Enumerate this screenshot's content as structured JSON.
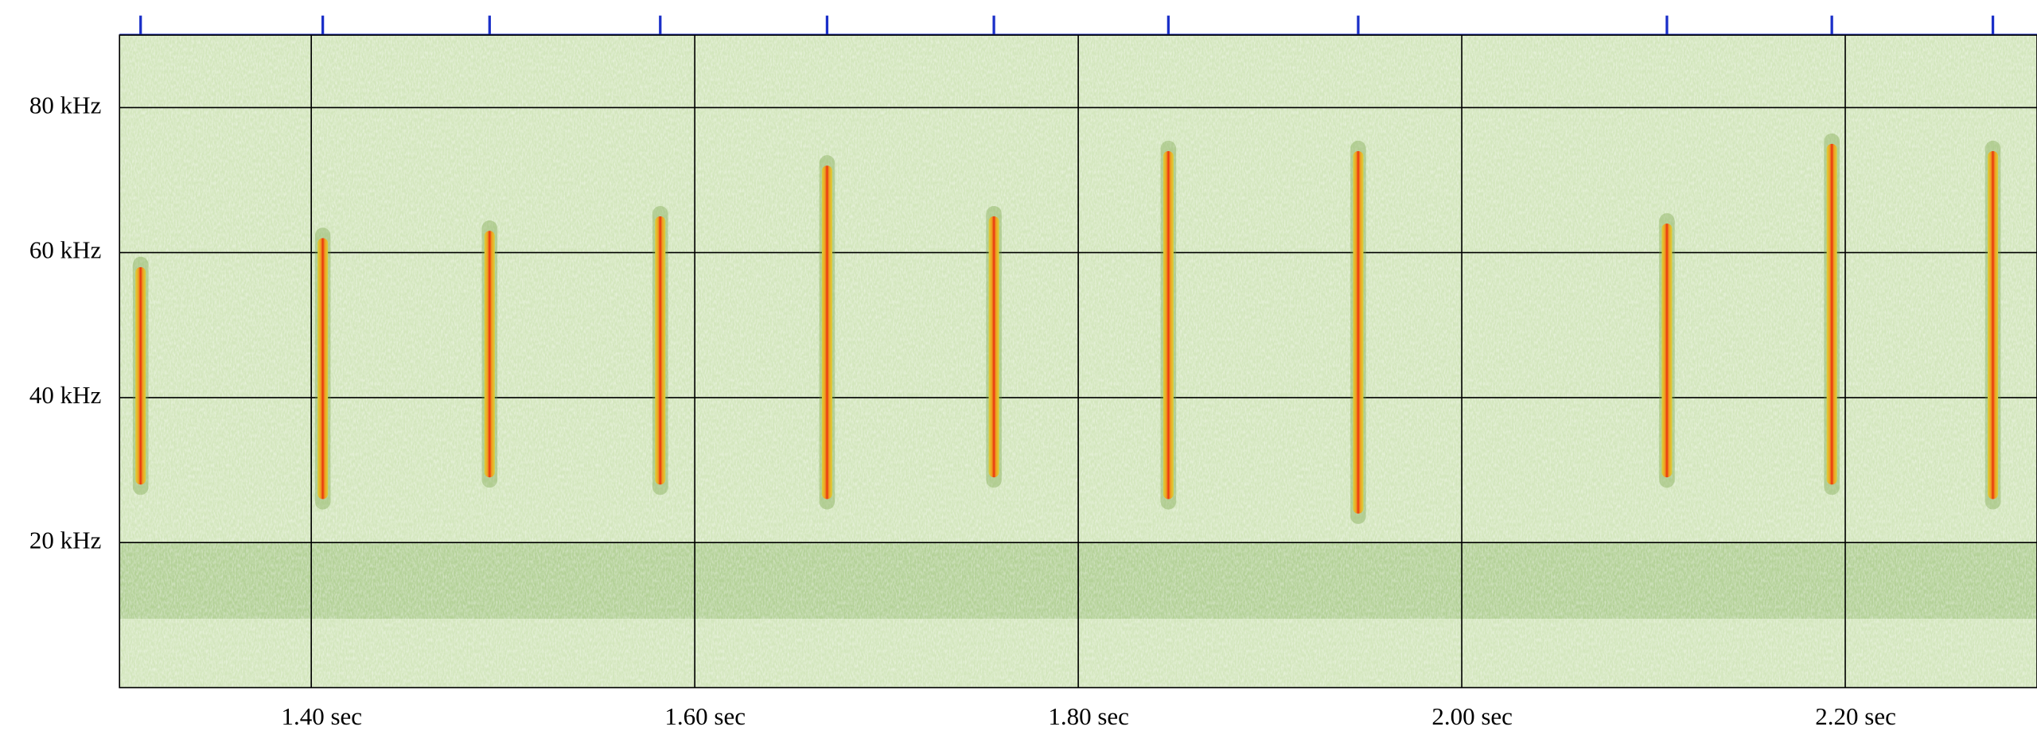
{
  "chart_data": {
    "type": "spectrogram",
    "xlim": [
      1.3,
      2.3
    ],
    "xticks": [
      {
        "value": 1.4,
        "label": "1.40 sec"
      },
      {
        "value": 1.6,
        "label": "1.60 sec"
      },
      {
        "value": 1.8,
        "label": "1.80 sec"
      },
      {
        "value": 2.0,
        "label": "2.00 sec"
      },
      {
        "value": 2.2,
        "label": "2.20 sec"
      }
    ],
    "ylim": [
      0,
      90
    ],
    "yticks": [
      {
        "value": 20,
        "label": "20 kHz"
      },
      {
        "value": 40,
        "label": "40 kHz"
      },
      {
        "value": 60,
        "label": "60 kHz"
      },
      {
        "value": 80,
        "label": "80 kHz"
      }
    ],
    "grid": true,
    "calls": [
      {
        "time": 1.311,
        "fmin": 28,
        "fmax": 58
      },
      {
        "time": 1.406,
        "fmin": 26,
        "fmax": 62
      },
      {
        "time": 1.493,
        "fmin": 29,
        "fmax": 63
      },
      {
        "time": 1.582,
        "fmin": 28,
        "fmax": 65
      },
      {
        "time": 1.669,
        "fmin": 26,
        "fmax": 72
      },
      {
        "time": 1.756,
        "fmin": 29,
        "fmax": 65
      },
      {
        "time": 1.847,
        "fmin": 26,
        "fmax": 74
      },
      {
        "time": 1.946,
        "fmin": 24,
        "fmax": 74
      },
      {
        "time": 2.107,
        "fmin": 29,
        "fmax": 64
      },
      {
        "time": 2.193,
        "fmin": 28,
        "fmax": 75
      },
      {
        "time": 2.277,
        "fmin": 26,
        "fmax": 74
      }
    ]
  }
}
